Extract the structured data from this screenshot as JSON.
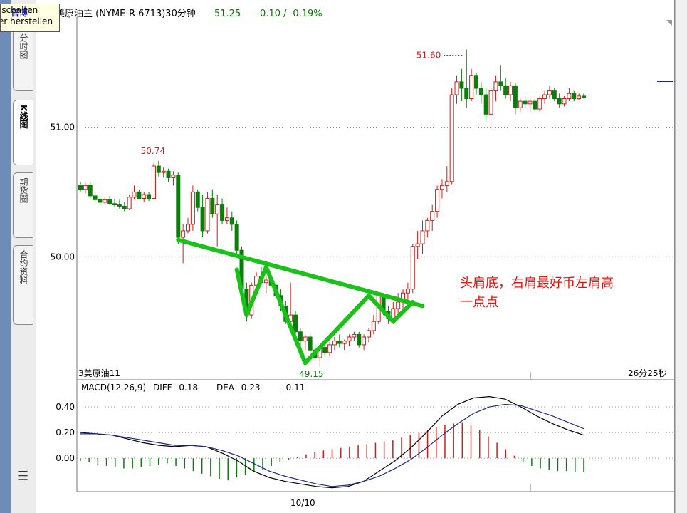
{
  "tooltip": {
    "line1": "oschalten",
    "line2": "er herstellen",
    "overlay": "官博"
  },
  "tabs": [
    {
      "label": "分时图",
      "active": false
    },
    {
      "label": "K线图",
      "active": true
    },
    {
      "label": "期货圈",
      "active": false
    },
    {
      "label": "合约资料",
      "active": false
    }
  ],
  "menu_icon": "menu-icon",
  "header": {
    "symbol": "美原油主 (NYME-R 6713)30分钟",
    "price": "51.25",
    "change": "-0.10 / -0.19%"
  },
  "annotation": {
    "line1": "头肩底，右肩最好币左肩高",
    "line2": "一点点"
  },
  "bottom_left_label": "3美原油11",
  "bottom_right_label": "26分25秒",
  "date_label": "10/10",
  "macd_header": {
    "name": "MACD(12,26,9)",
    "diff_label": "DIFF",
    "diff_value": "0.18",
    "dea_label": "DEA",
    "dea_value": "0.23",
    "macd_value": "-0.11"
  },
  "colors": {
    "up": "#c8201a",
    "down": "#0a7d0a",
    "pattern": "#19c119",
    "diff_line": "#000000",
    "dea_line": "#1c2a8a",
    "annotation": "#e8140c"
  },
  "chart_data": [
    {
      "type": "candlestick",
      "yticks": [
        "51.00",
        "50.00"
      ],
      "ylim": [
        49.05,
        51.85
      ],
      "peak_label": "51.60",
      "trough_label": "49.15",
      "left_high_label": "50.74",
      "candles": [
        [
          50.55,
          50.58,
          50.5,
          50.52
        ],
        [
          50.52,
          50.57,
          50.49,
          50.55
        ],
        [
          50.55,
          50.58,
          50.45,
          50.47
        ],
        [
          50.47,
          50.5,
          50.42,
          50.44
        ],
        [
          50.44,
          50.48,
          50.4,
          50.42
        ],
        [
          50.42,
          50.46,
          50.41,
          50.44
        ],
        [
          50.44,
          50.47,
          50.4,
          50.41
        ],
        [
          50.41,
          50.45,
          50.38,
          50.4
        ],
        [
          50.4,
          50.44,
          50.37,
          50.39
        ],
        [
          50.39,
          50.42,
          50.35,
          50.37
        ],
        [
          50.37,
          50.48,
          50.36,
          50.46
        ],
        [
          50.46,
          50.55,
          50.44,
          50.5
        ],
        [
          50.5,
          50.52,
          50.44,
          50.45
        ],
        [
          50.45,
          50.5,
          50.42,
          50.48
        ],
        [
          50.48,
          50.5,
          50.43,
          50.45
        ],
        [
          50.45,
          50.72,
          50.44,
          50.7
        ],
        [
          50.7,
          50.74,
          50.62,
          50.65
        ],
        [
          50.65,
          50.69,
          50.61,
          50.66
        ],
        [
          50.66,
          50.68,
          50.58,
          50.61
        ],
        [
          50.61,
          50.66,
          50.55,
          50.63
        ],
        [
          50.63,
          50.65,
          50.1,
          50.15
        ],
        [
          50.15,
          50.25,
          49.95,
          50.2
        ],
        [
          50.2,
          50.3,
          50.18,
          50.25
        ],
        [
          50.25,
          50.55,
          50.2,
          50.5
        ],
        [
          50.5,
          50.52,
          50.35,
          50.38
        ],
        [
          50.38,
          50.48,
          50.15,
          50.2
        ],
        [
          50.2,
          50.5,
          50.18,
          50.45
        ],
        [
          50.45,
          50.52,
          50.3,
          50.33
        ],
        [
          50.33,
          50.48,
          50.08,
          50.4
        ],
        [
          50.4,
          50.45,
          50.25,
          50.28
        ],
        [
          50.28,
          50.38,
          50.25,
          50.3
        ],
        [
          50.3,
          50.35,
          50.2,
          50.25
        ],
        [
          50.25,
          50.28,
          50.02,
          50.05
        ],
        [
          50.05,
          50.08,
          49.7,
          49.75
        ],
        [
          49.75,
          49.8,
          49.5,
          49.55
        ],
        [
          49.55,
          49.8,
          49.52,
          49.78
        ],
        [
          49.78,
          49.88,
          49.7,
          49.85
        ],
        [
          49.85,
          49.92,
          49.78,
          49.8
        ],
        [
          49.8,
          49.85,
          49.72,
          49.82
        ],
        [
          49.82,
          49.86,
          49.76,
          49.78
        ],
        [
          49.78,
          49.8,
          49.65,
          49.7
        ],
        [
          49.7,
          49.75,
          49.58,
          49.62
        ],
        [
          49.62,
          49.66,
          49.48,
          49.5
        ],
        [
          49.5,
          49.8,
          49.48,
          49.55
        ],
        [
          49.55,
          49.58,
          49.38,
          49.42
        ],
        [
          49.42,
          49.45,
          49.3,
          49.35
        ],
        [
          49.35,
          49.4,
          49.28,
          49.38
        ],
        [
          49.38,
          49.42,
          49.25,
          49.28
        ],
        [
          49.28,
          49.33,
          49.2,
          49.22
        ],
        [
          49.22,
          49.32,
          49.15,
          49.3
        ],
        [
          49.3,
          49.35,
          49.24,
          49.26
        ],
        [
          49.26,
          49.34,
          49.23,
          49.32
        ],
        [
          49.32,
          49.38,
          49.28,
          49.35
        ],
        [
          49.35,
          49.4,
          49.3,
          49.33
        ],
        [
          49.33,
          49.36,
          49.28,
          49.35
        ],
        [
          49.35,
          49.4,
          49.31,
          49.38
        ],
        [
          49.38,
          49.42,
          49.35,
          49.4
        ],
        [
          49.4,
          49.42,
          49.3,
          49.32
        ],
        [
          49.32,
          49.4,
          49.28,
          49.38
        ],
        [
          49.38,
          49.45,
          49.34,
          49.43
        ],
        [
          49.43,
          49.55,
          49.4,
          49.5
        ],
        [
          49.5,
          49.72,
          49.48,
          49.7
        ],
        [
          49.7,
          49.72,
          49.55,
          49.58
        ],
        [
          49.58,
          49.62,
          49.48,
          49.52
        ],
        [
          49.52,
          49.65,
          49.48,
          49.6
        ],
        [
          49.6,
          49.72,
          49.55,
          49.65
        ],
        [
          49.65,
          49.75,
          49.6,
          49.72
        ],
        [
          49.72,
          49.8,
          49.65,
          49.75
        ],
        [
          49.75,
          50.1,
          49.72,
          50.08
        ],
        [
          50.08,
          50.2,
          49.98,
          50.1
        ],
        [
          50.1,
          50.28,
          50.02,
          50.2
        ],
        [
          50.2,
          50.3,
          50.15,
          50.28
        ],
        [
          50.28,
          50.4,
          50.2,
          50.35
        ],
        [
          50.35,
          50.55,
          50.3,
          50.52
        ],
        [
          50.52,
          50.6,
          50.45,
          50.55
        ],
        [
          50.55,
          50.7,
          50.5,
          50.58
        ],
        [
          50.58,
          51.3,
          50.56,
          51.25
        ],
        [
          51.25,
          51.4,
          51.18,
          51.35
        ],
        [
          51.35,
          51.45,
          51.2,
          51.3
        ],
        [
          51.3,
          51.6,
          51.15,
          51.22
        ],
        [
          51.22,
          51.45,
          51.2,
          51.4
        ],
        [
          51.4,
          51.42,
          51.25,
          51.3
        ],
        [
          51.3,
          51.35,
          51.18,
          51.25
        ],
        [
          51.25,
          51.3,
          51.05,
          51.1
        ],
        [
          51.1,
          51.3,
          50.98,
          51.28
        ],
        [
          51.28,
          51.4,
          51.2,
          51.35
        ],
        [
          51.35,
          51.48,
          51.28,
          51.32
        ],
        [
          51.32,
          51.38,
          51.22,
          51.25
        ],
        [
          51.25,
          51.35,
          51.2,
          51.32
        ],
        [
          51.32,
          51.34,
          51.1,
          51.15
        ],
        [
          51.15,
          51.22,
          51.12,
          51.2
        ],
        [
          51.2,
          51.24,
          51.15,
          51.18
        ],
        [
          51.18,
          51.22,
          51.12,
          51.2
        ],
        [
          51.2,
          51.22,
          51.12,
          51.14
        ],
        [
          51.14,
          51.24,
          51.12,
          51.22
        ],
        [
          51.22,
          51.28,
          51.18,
          51.25
        ],
        [
          51.25,
          51.32,
          51.22,
          51.28
        ],
        [
          51.28,
          51.3,
          51.2,
          51.22
        ],
        [
          51.22,
          51.26,
          51.15,
          51.18
        ],
        [
          51.18,
          51.24,
          51.16,
          51.22
        ],
        [
          51.22,
          51.3,
          51.2,
          51.26
        ],
        [
          51.26,
          51.28,
          51.2,
          51.22
        ],
        [
          51.22,
          51.26,
          51.21,
          51.24
        ],
        [
          51.24,
          51.26,
          51.22,
          51.23
        ]
      ]
    },
    {
      "type": "macd",
      "yticks": [
        "0.40",
        "0.20",
        "0.00"
      ],
      "ylim": [
        -0.26,
        0.5
      ],
      "diff": [
        0.2,
        0.19,
        0.18,
        0.15,
        0.12,
        0.1,
        0.09,
        0.1,
        0.09,
        0.04,
        -0.02,
        -0.1,
        -0.15,
        -0.18,
        -0.2,
        -0.22,
        -0.23,
        -0.22,
        -0.18,
        -0.1,
        -0.02,
        0.08,
        0.2,
        0.33,
        0.42,
        0.47,
        0.48,
        0.46,
        0.4,
        0.33,
        0.27,
        0.22,
        0.18
      ],
      "dea": [
        0.19,
        0.19,
        0.18,
        0.16,
        0.14,
        0.12,
        0.1,
        0.1,
        0.09,
        0.06,
        0.02,
        -0.04,
        -0.1,
        -0.14,
        -0.17,
        -0.2,
        -0.22,
        -0.21,
        -0.18,
        -0.14,
        -0.08,
        -0.01,
        0.08,
        0.18,
        0.27,
        0.35,
        0.4,
        0.42,
        0.41,
        0.37,
        0.33,
        0.28,
        0.23
      ],
      "histogram": [
        -0.02,
        -0.03,
        -0.05,
        -0.06,
        -0.07,
        -0.08,
        -0.08,
        -0.07,
        -0.06,
        -0.05,
        -0.04,
        -0.06,
        -0.08,
        -0.1,
        -0.12,
        -0.14,
        -0.16,
        -0.17,
        -0.15,
        -0.13,
        -0.11,
        -0.09,
        -0.06,
        -0.03,
        -0.01,
        0.01,
        0.03,
        0.05,
        0.06,
        0.07,
        0.08,
        0.09,
        0.1,
        0.11,
        0.12,
        0.13,
        0.14,
        0.16,
        0.18,
        0.2,
        0.22,
        0.24,
        0.26,
        0.27,
        0.28,
        0.26,
        0.22,
        0.17,
        0.12,
        0.07,
        0.02,
        -0.03,
        -0.06,
        -0.08,
        -0.09,
        -0.1,
        -0.1,
        -0.11,
        -0.11
      ]
    }
  ]
}
